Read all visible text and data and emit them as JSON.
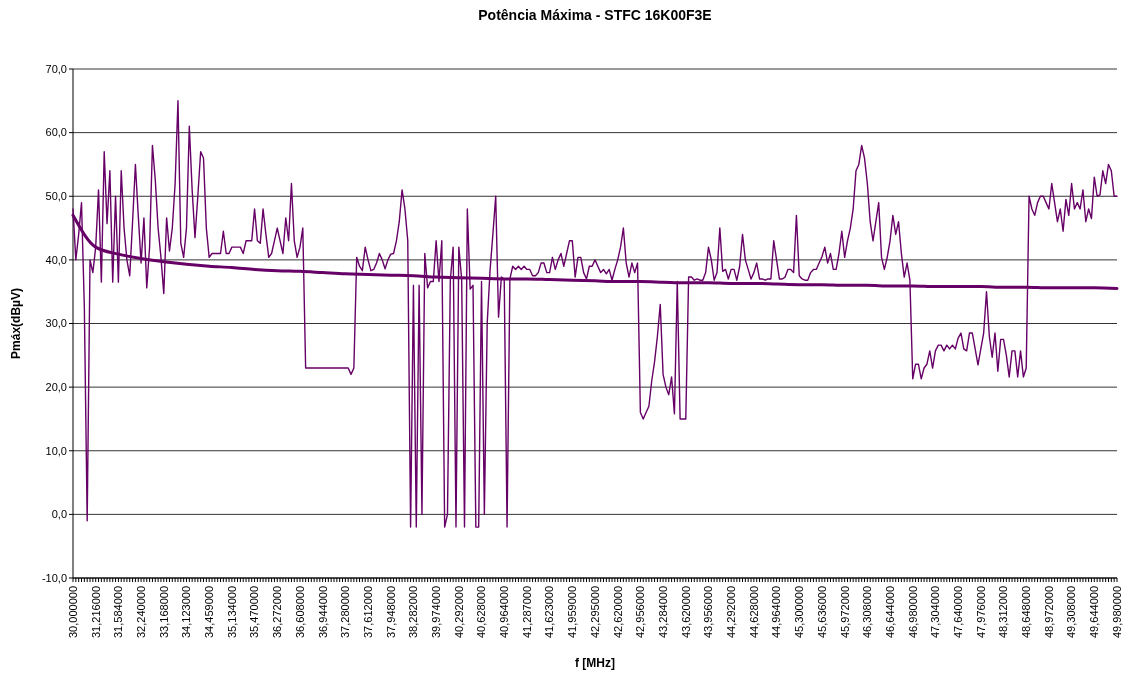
{
  "chart_data": {
    "type": "line",
    "title": "Potência Máxima - STFC 16K00F3E",
    "xlabel": "f [MHz]",
    "ylabel": "Pmáx(dBµV)",
    "categories": [
      "30,000000",
      null,
      null,
      null,
      null,
      null,
      null,
      null,
      "31,216000",
      null,
      null,
      null,
      null,
      null,
      null,
      null,
      "31,584000",
      null,
      null,
      null,
      null,
      null,
      null,
      null,
      "32,240000",
      null,
      null,
      null,
      null,
      null,
      null,
      null,
      "33,168000",
      null,
      null,
      null,
      null,
      null,
      null,
      null,
      "34,123000",
      null,
      null,
      null,
      null,
      null,
      null,
      null,
      "34,459000",
      null,
      null,
      null,
      null,
      null,
      null,
      null,
      "35,134000",
      null,
      null,
      null,
      null,
      null,
      null,
      null,
      "35,470000",
      null,
      null,
      null,
      null,
      null,
      null,
      null,
      "36,272000",
      null,
      null,
      null,
      null,
      null,
      null,
      null,
      "36,608000",
      null,
      null,
      null,
      null,
      null,
      null,
      null,
      "36,944000",
      null,
      null,
      null,
      null,
      null,
      null,
      null,
      "37,280000",
      null,
      null,
      null,
      null,
      null,
      null,
      null,
      "37,612000",
      null,
      null,
      null,
      null,
      null,
      null,
      null,
      "37,948000",
      null,
      null,
      null,
      null,
      null,
      null,
      null,
      "38,282000",
      null,
      null,
      null,
      null,
      null,
      null,
      null,
      "39,974000",
      null,
      null,
      null,
      null,
      null,
      null,
      null,
      "40,292000",
      null,
      null,
      null,
      null,
      null,
      null,
      null,
      "40,628000",
      null,
      null,
      null,
      null,
      null,
      null,
      null,
      "40,964000",
      null,
      null,
      null,
      null,
      null,
      null,
      null,
      "41,287000",
      null,
      null,
      null,
      null,
      null,
      null,
      null,
      "41,623000",
      null,
      null,
      null,
      null,
      null,
      null,
      null,
      "41,959000",
      null,
      null,
      null,
      null,
      null,
      null,
      null,
      "42,295000",
      null,
      null,
      null,
      null,
      null,
      null,
      null,
      "42,620000",
      null,
      null,
      null,
      null,
      null,
      null,
      null,
      "42,956000",
      null,
      null,
      null,
      null,
      null,
      null,
      null,
      "43,284000",
      null,
      null,
      null,
      null,
      null,
      null,
      null,
      "43,620000",
      null,
      null,
      null,
      null,
      null,
      null,
      null,
      "43,956000",
      null,
      null,
      null,
      null,
      null,
      null,
      null,
      "44,292000",
      null,
      null,
      null,
      null,
      null,
      null,
      null,
      "44,628000",
      null,
      null,
      null,
      null,
      null,
      null,
      null,
      "44,964000",
      null,
      null,
      null,
      null,
      null,
      null,
      null,
      "45,300000",
      null,
      null,
      null,
      null,
      null,
      null,
      null,
      "45,636000",
      null,
      null,
      null,
      null,
      null,
      null,
      null,
      "45,972000",
      null,
      null,
      null,
      null,
      null,
      null,
      null,
      "46,308000",
      null,
      null,
      null,
      null,
      null,
      null,
      null,
      "46,644000",
      null,
      null,
      null,
      null,
      null,
      null,
      null,
      "46,980000",
      null,
      null,
      null,
      null,
      null,
      null,
      null,
      "47,304000",
      null,
      null,
      null,
      null,
      null,
      null,
      null,
      "47,640000",
      null,
      null,
      null,
      null,
      null,
      null,
      null,
      "47,976000",
      null,
      null,
      null,
      null,
      null,
      null,
      null,
      "48,312000",
      null,
      null,
      null,
      null,
      null,
      null,
      null,
      "48,648000",
      null,
      null,
      null,
      null,
      null,
      null,
      null,
      "48,972000",
      null,
      null,
      null,
      null,
      null,
      null,
      null,
      "49,308000",
      null,
      null,
      null,
      null,
      null,
      null,
      null,
      "49,644000",
      null,
      null,
      null,
      null,
      null,
      null,
      null,
      "49,980000"
    ],
    "series": [
      {
        "color": "#660066",
        "values": [
          48,
          40,
          44,
          49,
          32.5,
          -1,
          40,
          38,
          42,
          51,
          36.5,
          57,
          45.7,
          54,
          36.5,
          50,
          36.5,
          54,
          45,
          40,
          37.5,
          46,
          55,
          47,
          39.5,
          46.6,
          35.6,
          42,
          58,
          52.6,
          45,
          40.4,
          34.7,
          46.6,
          41.4,
          45,
          52,
          65,
          42.6,
          40.4,
          45,
          61,
          51,
          43.5,
          50,
          57,
          56,
          45,
          40.4,
          41,
          41,
          41,
          41,
          44.5,
          41,
          41,
          42,
          42,
          42,
          42,
          41,
          43,
          43,
          43,
          48,
          43,
          42.6,
          48,
          44,
          40.4,
          41,
          43,
          45,
          43,
          41,
          46.6,
          43,
          52,
          43,
          40.4,
          42,
          45,
          23,
          23,
          23,
          23,
          23,
          23,
          23,
          23,
          23,
          23,
          23,
          23,
          23,
          23,
          23,
          23,
          22,
          23,
          40.4,
          39,
          38.3,
          42,
          40,
          38.3,
          38.5,
          39.5,
          41,
          40,
          38.6,
          40,
          40.9,
          41,
          43,
          46,
          51,
          48,
          43,
          -2,
          36,
          -2,
          36,
          0,
          41,
          35.6,
          36.6,
          36.6,
          43,
          36.6,
          43,
          -2,
          0,
          36.8,
          42,
          -2,
          42,
          37,
          -2,
          48,
          35.4,
          36,
          -2,
          -2,
          36.6,
          0,
          30,
          38.3,
          44,
          50,
          31,
          37.3,
          37,
          -2,
          37,
          39,
          38.5,
          39,
          38.5,
          39,
          38.5,
          38.5,
          37.5,
          37.5,
          38,
          39.5,
          39.5,
          38,
          38,
          40.4,
          38.5,
          40,
          41,
          39,
          41,
          43,
          43,
          37.3,
          40.4,
          40.4,
          38,
          37,
          39,
          39,
          40,
          39,
          38,
          38.5,
          37.8,
          38.5,
          36.8,
          38.5,
          40,
          42,
          45,
          39.5,
          37.3,
          39.5,
          38,
          39.5,
          16,
          15,
          16,
          17,
          21,
          24,
          28,
          33,
          22,
          20,
          18.8,
          21.6,
          15.8,
          36.6,
          15,
          15,
          15,
          37.3,
          37.3,
          36.8,
          37,
          36.8,
          36.8,
          38,
          42,
          40,
          36.8,
          38,
          45,
          38.2,
          38.5,
          37,
          38.5,
          38.5,
          36.8,
          39,
          44,
          40,
          38.5,
          37,
          38,
          39.5,
          37,
          37,
          36.8,
          37,
          37,
          43,
          40,
          37,
          37,
          37.3,
          38.5,
          38.5,
          38,
          47,
          37.5,
          37,
          36.8,
          36.8,
          38,
          38.5,
          38.5,
          39.5,
          40.5,
          42,
          39.5,
          41,
          38.5,
          38.5,
          41,
          44.5,
          40.4,
          43,
          45,
          48,
          54,
          55,
          58,
          56,
          52,
          46,
          43,
          46,
          49,
          40.4,
          38.5,
          40.4,
          43,
          47,
          44,
          46,
          41,
          37.3,
          39.5,
          36.8,
          21.3,
          23.6,
          23.6,
          21.3,
          23,
          23.6,
          25.7,
          23,
          25.7,
          26.6,
          26.6,
          25.7,
          26.6,
          26,
          26.6,
          26,
          27.7,
          28.5,
          26,
          25.7,
          28.5,
          28.5,
          26,
          23.5,
          26,
          28.5,
          35,
          28,
          24.7,
          28.5,
          22.5,
          27.5,
          27.5,
          25,
          21.6,
          25.7,
          25.7,
          21.6,
          25.7,
          21.6,
          23,
          50,
          48,
          47,
          49,
          50,
          50,
          49,
          48,
          52,
          49,
          46,
          48,
          44.5,
          49.5,
          47,
          52,
          48,
          49,
          48,
          51,
          46,
          48,
          46.5,
          53,
          50,
          50.2,
          54,
          52,
          55,
          54,
          50,
          50
        ]
      },
      {
        "type": "line",
        "color": "#660066",
        "x": [
          "30,000000",
          "31,216000",
          "31,584000",
          "32,240000",
          "33,168000",
          "34,123000",
          "34,459000",
          "35,134000",
          "35,470000",
          "36,272000",
          "36,608000",
          "36,944000",
          "37,280000",
          "37,612000",
          "37,948000",
          "38,282000",
          "39,974000",
          "40,292000",
          "40,628000",
          "40,964000",
          "41,287000",
          "41,623000",
          "41,959000",
          "42,295000",
          "42,620000",
          "42,956000",
          "43,284000",
          "43,620000",
          "43,956000",
          "44,292000",
          "44,628000",
          "44,964000",
          "45,300000",
          "45,636000",
          "45,972000",
          "46,308000",
          "46,644000",
          "46,980000",
          "47,304000",
          "47,640000",
          "47,976000",
          "48,312000",
          "48,648000",
          "48,972000",
          "49,308000",
          "49,644000",
          "49,980000"
        ],
        "values": [
          47,
          42.0,
          40.9,
          40.2,
          39.7,
          39.3,
          39.0,
          38.8,
          38.5,
          38.3,
          38.2,
          38.0,
          37.8,
          37.7,
          37.6,
          37.5,
          37.3,
          37.2,
          37.1,
          37.0,
          37.0,
          36.9,
          36.8,
          36.7,
          36.6,
          36.6,
          36.5,
          36.4,
          36.4,
          36.3,
          36.3,
          36.2,
          36.1,
          36.1,
          36.0,
          36.0,
          35.9,
          35.9,
          35.8,
          35.8,
          35.8,
          35.7,
          35.7,
          35.6,
          35.6,
          35.6,
          35.5
        ]
      }
    ],
    "ylim": [
      -10,
      70
    ],
    "yticks": [
      {
        "value": -10,
        "label": "-10,0"
      },
      {
        "value": 0,
        "label": "0,0"
      },
      {
        "value": 10,
        "label": "10,0"
      },
      {
        "value": 20,
        "label": "20,0"
      },
      {
        "value": 30,
        "label": "30,0"
      },
      {
        "value": 40,
        "label": "40,0"
      },
      {
        "value": 50,
        "label": "50,0"
      },
      {
        "value": 60,
        "label": "60,0"
      },
      {
        "value": 70,
        "label": "70,0"
      }
    ],
    "grid": "y",
    "marker": "none",
    "line_style": "solid"
  }
}
